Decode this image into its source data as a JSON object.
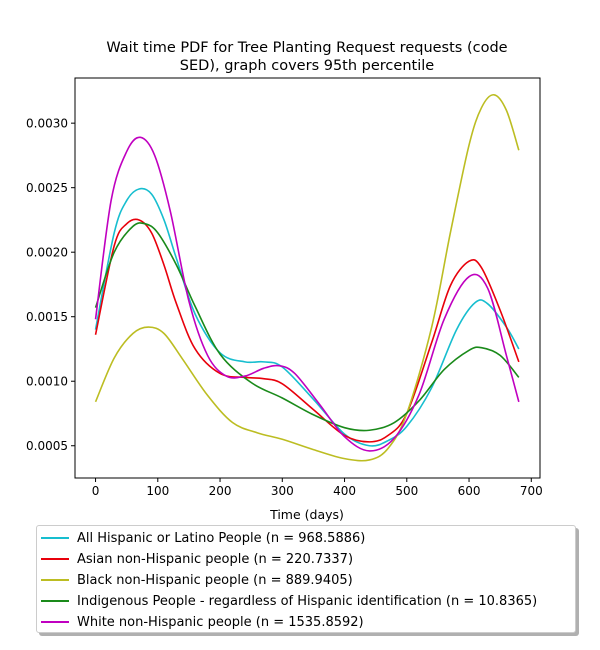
{
  "chart_data": {
    "type": "line",
    "title_line1": "Wait time PDF for Tree Planting Request  requests (code",
    "title_line2": "SED), graph covers 95th percentile",
    "xlabel": "Time (days)",
    "ylabel": "",
    "xlim": [
      -33,
      714
    ],
    "ylim": [
      0.00025,
      0.00335
    ],
    "x_ticks": [
      0,
      100,
      200,
      300,
      400,
      500,
      600,
      700
    ],
    "y_ticks": [
      0.0005,
      0.001,
      0.0015,
      0.002,
      0.0025,
      0.003
    ],
    "y_tick_labels": [
      "0.0005",
      "0.0010",
      "0.0015",
      "0.0020",
      "0.0025",
      "0.0030"
    ],
    "grid": false,
    "legend_position": "below-plot",
    "series": [
      {
        "name": "All Hispanic or Latino People (n = 968.5886)",
        "color": "#17becf",
        "x": [
          0,
          30,
          50,
          70,
          90,
          110,
          130,
          160,
          200,
          240,
          270,
          300,
          350,
          400,
          440,
          470,
          500,
          540,
          580,
          610,
          630,
          660,
          680
        ],
        "y": [
          0.0014,
          0.00215,
          0.0024,
          0.00249,
          0.00245,
          0.00225,
          0.00195,
          0.00152,
          0.00122,
          0.00115,
          0.00115,
          0.00111,
          0.00086,
          0.00059,
          0.0005,
          0.00054,
          0.00065,
          0.00095,
          0.0014,
          0.00161,
          0.0016,
          0.00142,
          0.00125
        ]
      },
      {
        "name": "Asian non-Hispanic people (n = 220.7337)",
        "color": "#e8000b",
        "x": [
          0,
          30,
          50,
          70,
          90,
          110,
          130,
          160,
          200,
          240,
          270,
          300,
          350,
          400,
          440,
          470,
          500,
          540,
          570,
          600,
          620,
          650,
          680
        ],
        "y": [
          0.00136,
          0.00205,
          0.00222,
          0.00225,
          0.00215,
          0.0019,
          0.0016,
          0.00125,
          0.00106,
          0.00103,
          0.00102,
          0.00098,
          0.00078,
          0.00058,
          0.00053,
          0.00058,
          0.00075,
          0.0013,
          0.00174,
          0.00193,
          0.00188,
          0.00155,
          0.00115
        ]
      },
      {
        "name": "Black non-Hispanic people (n = 889.9405)",
        "color": "#bcbd22",
        "x": [
          0,
          30,
          60,
          85,
          110,
          140,
          180,
          220,
          260,
          300,
          350,
          400,
          440,
          470,
          500,
          540,
          570,
          600,
          620,
          640,
          660,
          680
        ],
        "y": [
          0.00084,
          0.00118,
          0.00137,
          0.00142,
          0.00137,
          0.00117,
          0.00089,
          0.00068,
          0.0006,
          0.00055,
          0.00047,
          0.0004,
          0.00039,
          0.00048,
          0.00075,
          0.00142,
          0.00215,
          0.00283,
          0.00312,
          0.00322,
          0.0031,
          0.00279
        ]
      },
      {
        "name": "Indigenous People - regardless of Hispanic identification (n = 10.8365)",
        "color": "#1a8a1a",
        "x": [
          0,
          30,
          60,
          80,
          100,
          130,
          160,
          200,
          250,
          300,
          350,
          400,
          440,
          480,
          520,
          560,
          600,
          620,
          650,
          680
        ],
        "y": [
          0.00157,
          0.002,
          0.0022,
          0.00222,
          0.00215,
          0.0019,
          0.00158,
          0.00121,
          0.00099,
          0.00087,
          0.00074,
          0.00064,
          0.00062,
          0.00068,
          0.00085,
          0.00109,
          0.00124,
          0.00126,
          0.0012,
          0.00103
        ]
      },
      {
        "name": "White non-Hispanic people (n = 1535.8592)",
        "color": "#c000c0",
        "x": [
          0,
          25,
          50,
          72,
          95,
          120,
          150,
          180,
          210,
          240,
          270,
          295,
          320,
          360,
          400,
          440,
          480,
          520,
          560,
          600,
          630,
          660,
          680
        ],
        "y": [
          0.00148,
          0.0024,
          0.00278,
          0.00289,
          0.00275,
          0.00232,
          0.00162,
          0.0012,
          0.00104,
          0.00104,
          0.0011,
          0.00112,
          0.00106,
          0.00082,
          0.00057,
          0.00046,
          0.00056,
          0.0009,
          0.00148,
          0.00181,
          0.00172,
          0.0012,
          0.00084
        ]
      }
    ]
  }
}
